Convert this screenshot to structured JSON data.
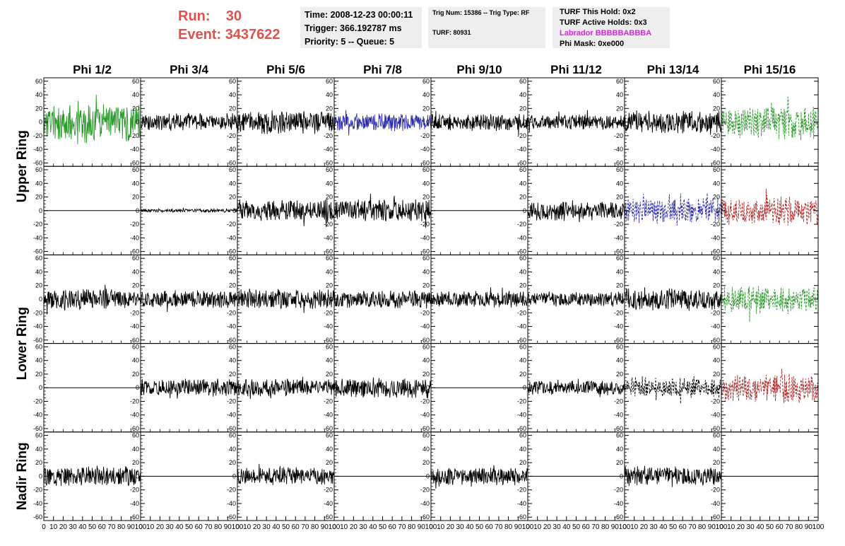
{
  "header": {
    "run_label": "Run:",
    "run_value": "30",
    "event_label": "Event:",
    "event_value": "3437622",
    "time_line": "Time: 2008-12-23 00:00:11",
    "trigger_line": "Trigger: 366.192787 ms",
    "priority_line": "Priority: 5 -- Queue: 5",
    "trig_num_line": "Trig Num: 15386 -- Trig Type: RF",
    "turf_line": "TURF: 80931",
    "turf_hold_line": "TURF This Hold: 0x2",
    "turf_active_line": "TURF Active Holds: 0x3",
    "labrador_line": "Labrador BBBBBABBBA",
    "phi_mask_line": "Phi Mask: 0xe000"
  },
  "colors": {
    "header_red": "#d9534f",
    "labrador_magenta": "#e020e0",
    "green": "#2a9a2a",
    "blue": "#2a2ab0",
    "red": "#b02a2a",
    "black": "#000000",
    "box_bg": "#eeeeee"
  },
  "chart_data": {
    "type": "line",
    "title": "",
    "columns": [
      "Phi 1/2",
      "Phi 3/4",
      "Phi 5/6",
      "Phi 7/8",
      "Phi 9/10",
      "Phi 11/12",
      "Phi 13/14",
      "Phi 15/16"
    ],
    "ring_labels": [
      {
        "name": "Upper Ring",
        "rows": [
          0,
          1
        ]
      },
      {
        "name": "Lower Ring",
        "rows": [
          2,
          3
        ]
      },
      {
        "name": "Nadir Ring",
        "rows": [
          4
        ]
      }
    ],
    "xlim": [
      0,
      100
    ],
    "ylim": [
      -65,
      65
    ],
    "yticks": [
      -60,
      -40,
      -20,
      0,
      20,
      40,
      60
    ],
    "xticks": [
      0,
      10,
      20,
      30,
      40,
      50,
      60,
      70,
      80,
      90,
      100
    ],
    "grid": false,
    "panels": [
      [
        {
          "color": "green",
          "style": "solid",
          "amp": 32,
          "seed": 11
        },
        {
          "color": "black",
          "style": "solid",
          "amp": 14,
          "seed": 12
        },
        {
          "color": "black",
          "style": "solid",
          "amp": 18,
          "seed": 13
        },
        {
          "color": "blue",
          "style": "solid",
          "amp": 14,
          "seed": 14
        },
        {
          "color": "black",
          "style": "solid",
          "amp": 14,
          "seed": 15
        },
        {
          "color": "black",
          "style": "solid",
          "amp": 12,
          "seed": 16
        },
        {
          "color": "black",
          "style": "solid",
          "amp": 18,
          "seed": 17
        },
        {
          "color": "green",
          "style": "dashed",
          "amp": 26,
          "seed": 18
        }
      ],
      [
        {
          "color": "black",
          "style": "flat",
          "amp": 0,
          "seed": 21
        },
        {
          "color": "black",
          "style": "solid",
          "amp": 3,
          "seed": 22
        },
        {
          "color": "black",
          "style": "solid",
          "amp": 18,
          "seed": 23
        },
        {
          "color": "black",
          "style": "solid",
          "amp": 18,
          "seed": 24
        },
        {
          "color": "black",
          "style": "flat",
          "amp": 0,
          "seed": 25
        },
        {
          "color": "black",
          "style": "solid",
          "amp": 16,
          "seed": 26
        },
        {
          "color": "blue",
          "style": "dashed",
          "amp": 20,
          "seed": 27
        },
        {
          "color": "red",
          "style": "dashed",
          "amp": 22,
          "seed": 28
        }
      ],
      [
        {
          "color": "black",
          "style": "solid",
          "amp": 16,
          "seed": 31
        },
        {
          "color": "black",
          "style": "solid",
          "amp": 14,
          "seed": 32
        },
        {
          "color": "black",
          "style": "solid",
          "amp": 16,
          "seed": 33
        },
        {
          "color": "black",
          "style": "solid",
          "amp": 14,
          "seed": 34
        },
        {
          "color": "black",
          "style": "solid",
          "amp": 13,
          "seed": 35
        },
        {
          "color": "black",
          "style": "solid",
          "amp": 12,
          "seed": 36
        },
        {
          "color": "black",
          "style": "solid",
          "amp": 18,
          "seed": 37
        },
        {
          "color": "green",
          "style": "dashed",
          "amp": 22,
          "seed": 38
        }
      ],
      [
        {
          "color": "black",
          "style": "flat",
          "amp": 0,
          "seed": 41
        },
        {
          "color": "black",
          "style": "solid",
          "amp": 14,
          "seed": 42
        },
        {
          "color": "black",
          "style": "solid",
          "amp": 14,
          "seed": 43
        },
        {
          "color": "black",
          "style": "solid",
          "amp": 16,
          "seed": 44
        },
        {
          "color": "black",
          "style": "flat",
          "amp": 0,
          "seed": 45
        },
        {
          "color": "black",
          "style": "solid",
          "amp": 12,
          "seed": 46
        },
        {
          "color": "black",
          "style": "dashed",
          "amp": 16,
          "seed": 47
        },
        {
          "color": "red",
          "style": "dashed",
          "amp": 24,
          "seed": 48
        }
      ],
      [
        {
          "color": "black",
          "style": "solid",
          "amp": 16,
          "seed": 51
        },
        {
          "color": "black",
          "style": "flat",
          "amp": 0,
          "seed": 52
        },
        {
          "color": "black",
          "style": "solid",
          "amp": 14,
          "seed": 53
        },
        {
          "color": "black",
          "style": "flat",
          "amp": 0,
          "seed": 54
        },
        {
          "color": "black",
          "style": "solid",
          "amp": 14,
          "seed": 55
        },
        {
          "color": "black",
          "style": "flat",
          "amp": 0,
          "seed": 56
        },
        {
          "color": "black",
          "style": "solid",
          "amp": 16,
          "seed": 57
        },
        {
          "color": "black",
          "style": "flat",
          "amp": 0,
          "seed": 58
        }
      ]
    ]
  }
}
